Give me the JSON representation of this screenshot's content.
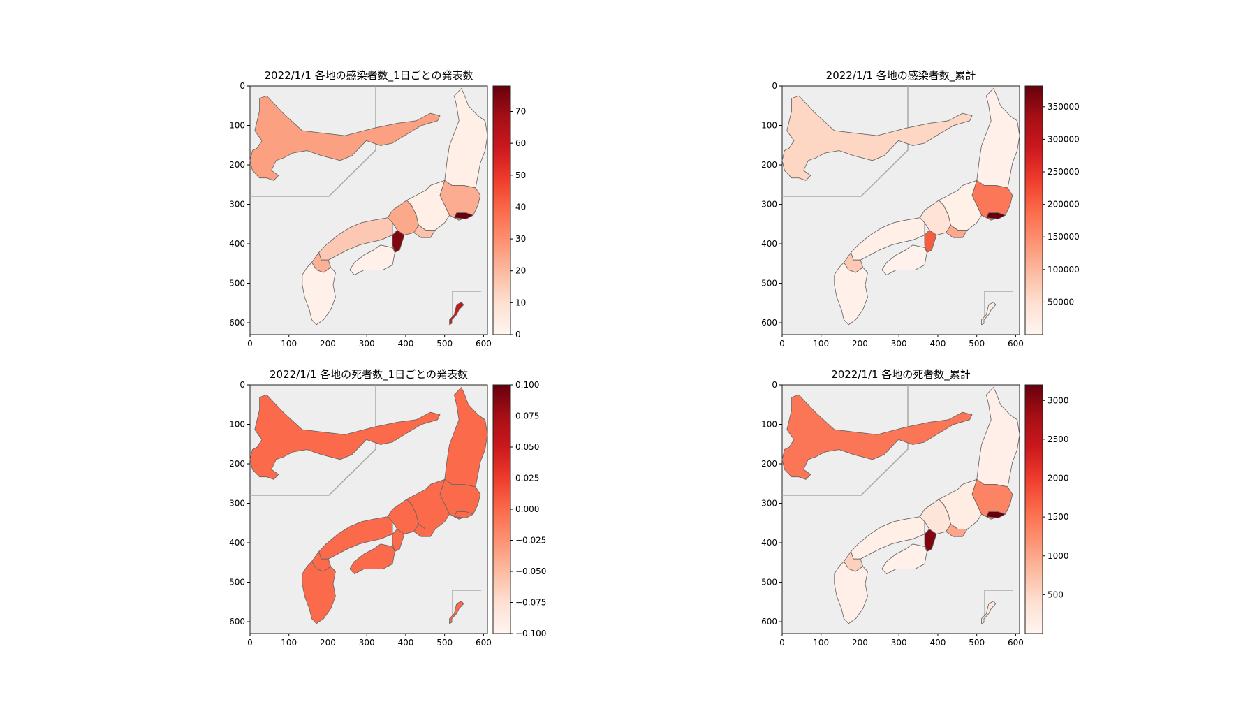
{
  "maps": [
    {
      "title": "2022/1/1 各地の感染者数_1日ごとの発表数",
      "axis_ticks": [
        "0",
        "100",
        "200",
        "300",
        "400",
        "500",
        "600"
      ],
      "colorbar": {
        "ticks": [
          "0",
          "10",
          "20",
          "30",
          "40",
          "50",
          "60",
          "70"
        ],
        "vmin": 0,
        "vmax": 78
      },
      "values": {
        "hokkaido": 26,
        "tohoku": 3,
        "kanto": 23,
        "tokyo": 78,
        "chubu": 3,
        "aichi": 18,
        "kyoto": 24,
        "osaka": 74,
        "chugoku": 16,
        "shikoku": 2,
        "fukuoka": 22,
        "kyushu": 2,
        "okinawa": 60
      }
    },
    {
      "title": "2022/1/1 各地の感染者数_累計",
      "axis_ticks": [
        "0",
        "100",
        "200",
        "300",
        "400",
        "500",
        "600"
      ],
      "colorbar": {
        "ticks": [
          "50000",
          "100000",
          "150000",
          "200000",
          "250000",
          "300000",
          "350000"
        ],
        "vmin": 0,
        "vmax": 382000
      },
      "values": {
        "hokkaido": 61000,
        "tohoku": 9000,
        "kanto": 175000,
        "tokyo": 382000,
        "chubu": 12000,
        "aichi": 118000,
        "kyoto": 42000,
        "osaka": 205000,
        "chugoku": 14000,
        "shikoku": 8000,
        "fukuoka": 78000,
        "kyushu": 9000,
        "okinawa": 19000
      }
    },
    {
      "title": "2022/1/1 各地の死者数_1日ごとの発表数",
      "axis_ticks": [
        "0",
        "100",
        "200",
        "300",
        "400",
        "500",
        "600"
      ],
      "colorbar": {
        "ticks": [
          "0.100",
          "0.075",
          "0.050",
          "0.025",
          "0.000",
          "−0.025",
          "−0.050",
          "−0.075",
          "−0.100"
        ],
        "vmin": -0.1,
        "vmax": 0.1
      },
      "values": {
        "hokkaido": 0,
        "tohoku": 0,
        "kanto": 0,
        "tokyo": 0,
        "chubu": 0,
        "aichi": 0,
        "kyoto": 0,
        "osaka": 0,
        "chugoku": 0,
        "shikoku": 0,
        "fukuoka": 0,
        "kyushu": 0,
        "okinawa": 0
      }
    },
    {
      "title": "2022/1/1 各地の死者数_累計",
      "axis_ticks": [
        "0",
        "100",
        "200",
        "300",
        "400",
        "500",
        "600"
      ],
      "colorbar": {
        "ticks": [
          "500",
          "1000",
          "1500",
          "2000",
          "2500",
          "3000"
        ],
        "vmin": 0,
        "vmax": 3200
      },
      "values": {
        "hokkaido": 1480,
        "tohoku": 110,
        "kanto": 1350,
        "tokyo": 3200,
        "chubu": 160,
        "aichi": 1010,
        "kyoto": 300,
        "osaka": 3050,
        "chugoku": 120,
        "shikoku": 100,
        "fukuoka": 570,
        "kyushu": 110,
        "okinawa": 250
      }
    }
  ],
  "colors": {
    "map_background": "#eeeeee",
    "border": "#666666",
    "ramp": [
      "#fff5f0",
      "#fee0d2",
      "#fcbba1",
      "#fc9272",
      "#fb6a4a",
      "#ef3b2c",
      "#cb181d",
      "#a50f15",
      "#67000d"
    ]
  }
}
